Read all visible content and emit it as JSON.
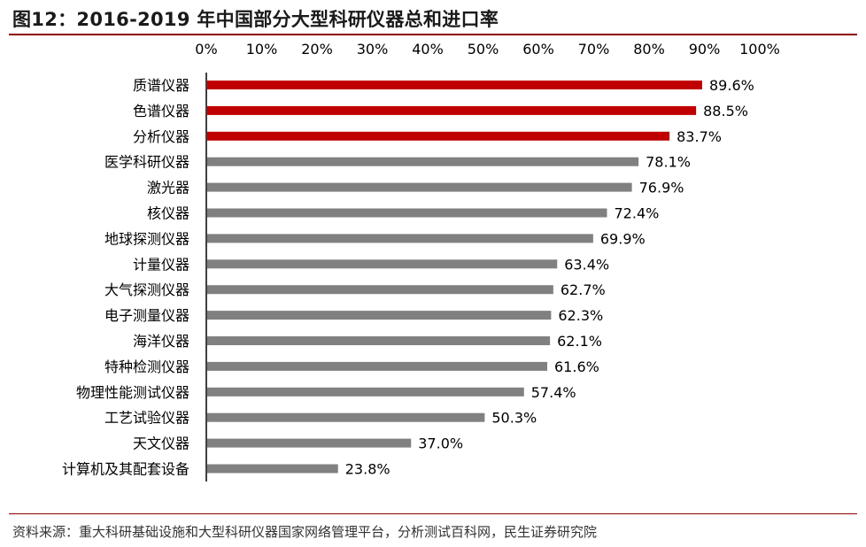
{
  "header": {
    "title": "图12：2016-2019 年中国部分大型科研仪器总和进口率"
  },
  "footer": {
    "source": "资料来源：重大科研基础设施和大型科研仪器国家网络管理平台，分析测试百科网，民生证券研究院"
  },
  "colors": {
    "highlight": "#c00000",
    "normal": "#808080",
    "axis": "#000000"
  },
  "chart_data": {
    "type": "bar",
    "orientation": "horizontal",
    "title": "",
    "xlabel": "",
    "ylabel": "",
    "xlim": [
      0,
      100
    ],
    "x_ticks": [
      "0%",
      "10%",
      "20%",
      "30%",
      "40%",
      "50%",
      "60%",
      "70%",
      "80%",
      "90%",
      "100%"
    ],
    "x_axis_position": "top",
    "grid": false,
    "legend": "none",
    "categories": [
      "质谱仪器",
      "色谱仪器",
      "分析仪器",
      "医学科研仪器",
      "激光器",
      "核仪器",
      "地球探测仪器",
      "计量仪器",
      "大气探测仪器",
      "电子测量仪器",
      "海洋仪器",
      "特种检测仪器",
      "物理性能测试仪器",
      "工艺试验仪器",
      "天文仪器",
      "计算机及其配套设备"
    ],
    "values": [
      89.6,
      88.5,
      83.7,
      78.1,
      76.9,
      72.4,
      69.9,
      63.4,
      62.7,
      62.3,
      62.1,
      61.6,
      57.4,
      50.3,
      37.0,
      23.8
    ],
    "value_labels": [
      "89.6%",
      "88.5%",
      "83.7%",
      "78.1%",
      "76.9%",
      "72.4%",
      "69.9%",
      "63.4%",
      "62.7%",
      "62.3%",
      "62.1%",
      "61.6%",
      "57.4%",
      "50.3%",
      "37.0%",
      "23.8%"
    ],
    "highlighted": [
      true,
      true,
      true,
      false,
      false,
      false,
      false,
      false,
      false,
      false,
      false,
      false,
      false,
      false,
      false,
      false
    ]
  }
}
